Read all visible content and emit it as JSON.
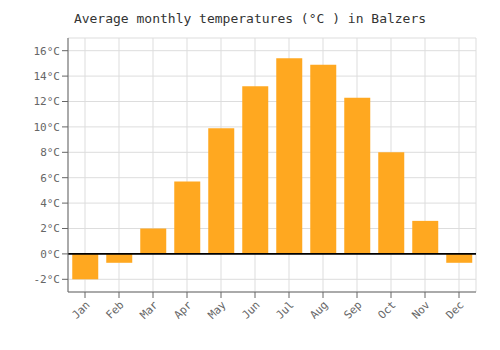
{
  "chart_data": {
    "type": "bar",
    "title": "Average monthly temperatures (°C ) in Balzers",
    "categories": [
      "Jan",
      "Feb",
      "Mar",
      "Apr",
      "May",
      "Jun",
      "Jul",
      "Aug",
      "Sep",
      "Oct",
      "Nov",
      "Dec"
    ],
    "values": [
      -2.0,
      -0.7,
      2.0,
      5.7,
      9.9,
      13.2,
      15.4,
      14.9,
      12.3,
      8.0,
      2.6,
      -0.7
    ],
    "color": "#FFA820",
    "ylim": [
      -3,
      17
    ],
    "yticks": [
      {
        "value": -2,
        "label": "-2°C"
      },
      {
        "value": 0,
        "label": "0°C"
      },
      {
        "value": 2,
        "label": "2°C"
      },
      {
        "value": 4,
        "label": "4°C"
      },
      {
        "value": 6,
        "label": "6°C"
      },
      {
        "value": 8,
        "label": "8°C"
      },
      {
        "value": 10,
        "label": "10°C"
      },
      {
        "value": 12,
        "label": "12°C"
      },
      {
        "value": 14,
        "label": "14°C"
      },
      {
        "value": 16,
        "label": "16°C"
      }
    ],
    "grid": true
  }
}
